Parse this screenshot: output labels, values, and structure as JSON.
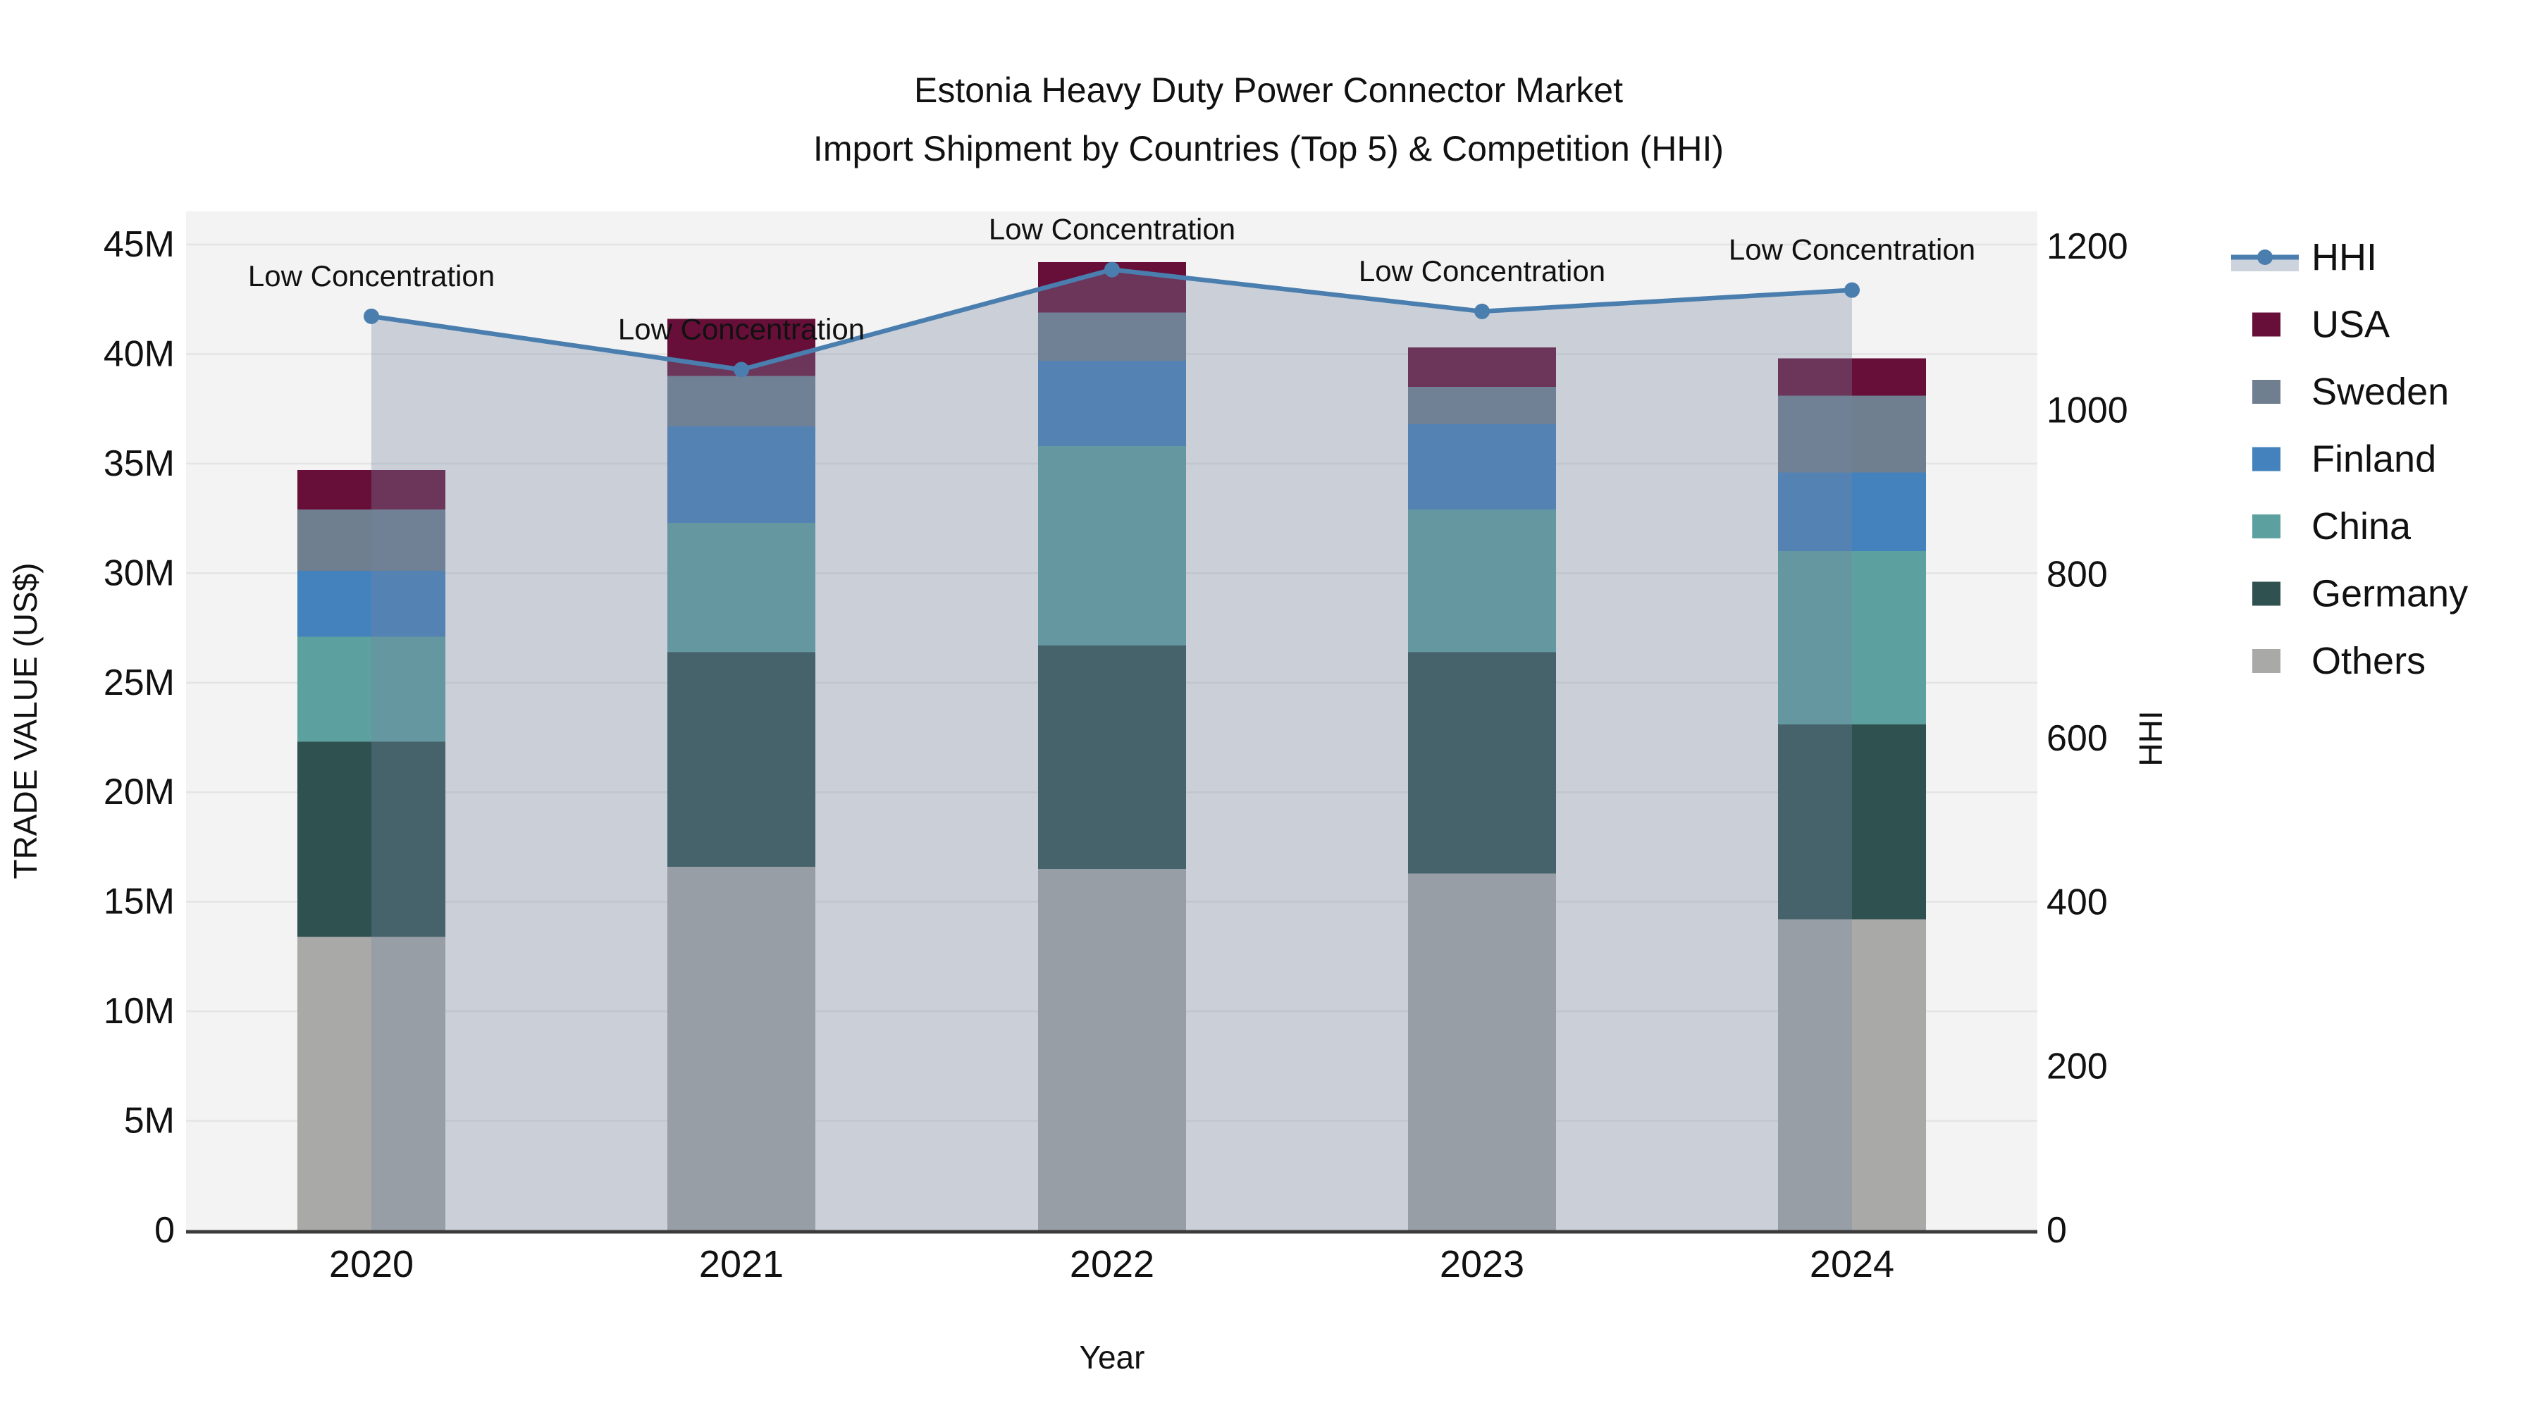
{
  "title": {
    "line1": "Estonia Heavy Duty Power Connector Market",
    "line2": "Import Shipment by Countries (Top 5) & Competition (HHI)"
  },
  "axes": {
    "y_left": {
      "title": "TRADE VALUE (US$)",
      "tick_labels": [
        "0",
        "5M",
        "10M",
        "15M",
        "20M",
        "25M",
        "30M",
        "35M",
        "40M",
        "45M"
      ],
      "tick_values_millions": [
        0,
        5,
        10,
        15,
        20,
        25,
        30,
        35,
        40,
        45
      ]
    },
    "y_right": {
      "title": "HHI",
      "tick_labels": [
        "0",
        "200",
        "400",
        "600",
        "800",
        "1000",
        "1200"
      ],
      "tick_values": [
        0,
        200,
        400,
        600,
        800,
        1000,
        1200
      ]
    },
    "x": {
      "title": "Year",
      "categories": [
        "2020",
        "2021",
        "2022",
        "2023",
        "2024"
      ]
    }
  },
  "legend": {
    "items": [
      "HHI",
      "USA",
      "Sweden",
      "Finland",
      "China",
      "Germany",
      "Others"
    ]
  },
  "annotation_labels": [
    "Low Concentration",
    "Low Concentration",
    "Low Concentration",
    "Low Concentration",
    "Low Concentration"
  ],
  "chart_data": {
    "type": "bar",
    "subtype": "stacked bars with HHI line on secondary y-axis and translucent area fill under line",
    "title": "Estonia Heavy Duty Power Connector Market — Import Shipment by Countries (Top 5) & Competition (HHI)",
    "xlabel": "Year",
    "ylabel": "TRADE VALUE (US$)",
    "ylabel_right": "HHI",
    "categories": [
      "2020",
      "2021",
      "2022",
      "2023",
      "2024"
    ],
    "unit": "million US$",
    "ylim_left_millions": [
      0,
      45
    ],
    "ylim_right": [
      0,
      1200
    ],
    "grid": true,
    "legend_position": "outside top-right",
    "stack_order_bottom_to_top": [
      "Others",
      "Germany",
      "China",
      "Finland",
      "Sweden",
      "USA"
    ],
    "series": [
      {
        "name": "USA",
        "color": "#670F39",
        "values_millions": [
          1.8,
          2.6,
          2.3,
          1.8,
          1.7
        ]
      },
      {
        "name": "Sweden",
        "color": "#6F7F8F",
        "values_millions": [
          2.8,
          2.3,
          2.2,
          1.7,
          3.5
        ]
      },
      {
        "name": "Finland",
        "color": "#4382BC",
        "values_millions": [
          3.0,
          4.4,
          3.9,
          3.9,
          3.6
        ]
      },
      {
        "name": "China",
        "color": "#5CA0A0",
        "values_millions": [
          4.8,
          5.9,
          9.1,
          6.5,
          7.9
        ]
      },
      {
        "name": "Germany",
        "color": "#2F5150",
        "values_millions": [
          8.9,
          9.8,
          10.2,
          10.1,
          8.9
        ]
      },
      {
        "name": "Others",
        "color": "#A9AAA8",
        "values_millions": [
          13.4,
          16.6,
          16.5,
          16.3,
          14.2
        ]
      }
    ],
    "totals_millions": [
      34.7,
      41.6,
      44.2,
      40.3,
      39.8
    ],
    "line": {
      "name": "HHI",
      "axis": "right",
      "color": "#4A7EAE",
      "area_fill": "rgba(118,133,160,0.33)",
      "values": [
        1115,
        1050,
        1172,
        1121,
        1147
      ],
      "point_annotation": "Low Concentration"
    }
  },
  "colors": {
    "figure_bg": "#FFFFFF",
    "plot_bg": "#F3F3F3",
    "grid": "#E4E4E4",
    "axis_line": "#3B3B3B",
    "text": "#111111",
    "legend_fill_swatch": "#CDD3DC"
  }
}
